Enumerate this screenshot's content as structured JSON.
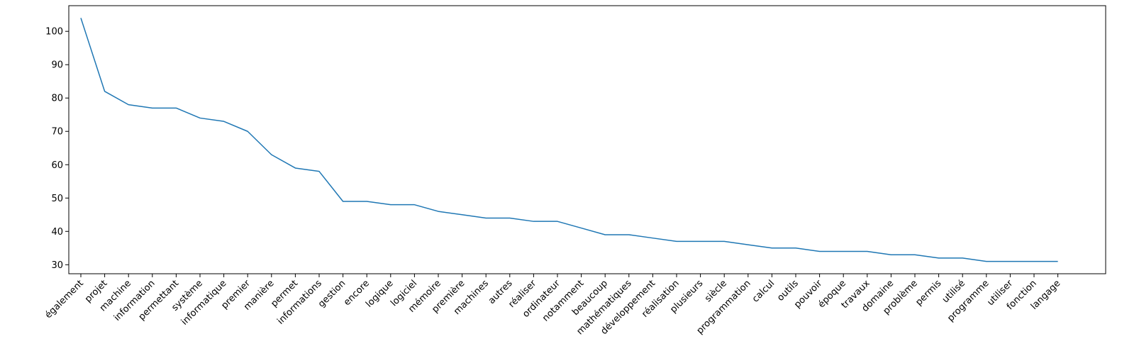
{
  "chart_data": {
    "type": "line",
    "title": "",
    "xlabel": "",
    "ylabel": "",
    "ylim": [
      27.3,
      107.7
    ],
    "y_ticks": [
      30,
      40,
      50,
      60,
      70,
      80,
      90,
      100
    ],
    "x_tick_rotation_deg": 45,
    "grid": false,
    "legend": "none",
    "line_color": "#1f77b4",
    "categories": [
      "également",
      "projet",
      "machine",
      "information",
      "permettant",
      "système",
      "informatique",
      "premier",
      "manière",
      "permet",
      "informations",
      "gestion",
      "encore",
      "logique",
      "logiciel",
      "mémoire",
      "première",
      "machines",
      "autres",
      "réaliser",
      "ordinateur",
      "notamment",
      "beaucoup",
      "mathématiques",
      "développement",
      "réalisation",
      "plusieurs",
      "siècle",
      "programmation",
      "calcul",
      "outils",
      "pouvoir",
      "époque",
      "travaux",
      "domaine",
      "problème",
      "permis",
      "utilisé",
      "programme",
      "utiliser",
      "fonction",
      "langage"
    ],
    "series": [
      {
        "values": [
          104,
          82,
          78,
          77,
          77,
          74,
          73,
          70,
          63,
          59,
          58,
          49,
          49,
          48,
          48,
          46,
          45,
          44,
          44,
          43,
          43,
          41,
          39,
          39,
          38,
          37,
          37,
          37,
          36,
          35,
          35,
          34,
          34,
          34,
          33,
          33,
          32,
          32,
          31,
          31,
          31,
          31
        ]
      }
    ]
  }
}
